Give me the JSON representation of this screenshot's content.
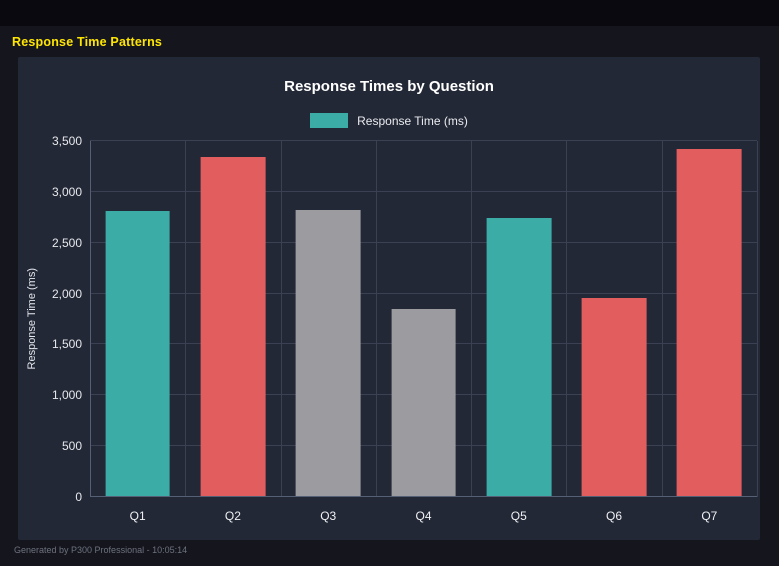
{
  "page": {
    "title": "Response Time Patterns"
  },
  "footer": {
    "text": "Generated by P300 Professional - 10:05:14"
  },
  "palette": {
    "teal": "#3caca6",
    "red": "#e25d5d",
    "gray": "#9b9ba0",
    "panel_bg": "#232836",
    "outer_bg": "#15151e",
    "grid": "#3b4152",
    "title_yellow": "#ffe600"
  },
  "chart_data": {
    "type": "bar",
    "title": "Response Times by Question",
    "legend": "Response Time (ms)",
    "xlabel": "",
    "ylabel": "Response Time (ms)",
    "categories": [
      "Q1",
      "Q2",
      "Q3",
      "Q4",
      "Q5",
      "Q6",
      "Q7"
    ],
    "values": [
      2800,
      3330,
      2810,
      1840,
      2730,
      1950,
      3410
    ],
    "bar_colors": [
      "teal",
      "red",
      "gray",
      "gray",
      "teal",
      "red",
      "red"
    ],
    "ylim": [
      0,
      3500
    ],
    "ytick_step": 500,
    "grid": true,
    "legend_position": "top"
  }
}
